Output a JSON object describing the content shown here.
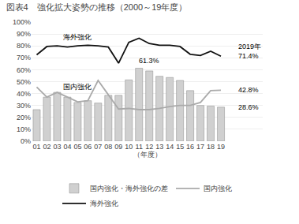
{
  "chart_data": {
    "type": "bar",
    "title": "図表4　強化拡大姿勢の推移（2000～19年度）",
    "x_label": "（年度）",
    "categories": [
      "01",
      "02",
      "03",
      "04",
      "05",
      "06",
      "07",
      "08",
      "09",
      "10",
      "11",
      "12",
      "13",
      "14",
      "15",
      "16",
      "17",
      "18",
      "19"
    ],
    "series": [
      {
        "name": "国内強化・海外強化の差",
        "type": "bar",
        "color": "#d0d0d0",
        "values": [
          26.5,
          37.0,
          41.0,
          37.0,
          32.5,
          34.0,
          32.0,
          38.5,
          38.5,
          51.5,
          61.3,
          59.0,
          54.5,
          53.5,
          51.0,
          42.5,
          30.0,
          29.5,
          28.6
        ]
      },
      {
        "name": "国内強化",
        "type": "line",
        "color": "#aaaaaa",
        "values": [
          45.5,
          37.0,
          41.0,
          37.0,
          33.0,
          34.0,
          51.0,
          39.0,
          27.0,
          27.5,
          26.5,
          26.5,
          27.5,
          29.0,
          30.0,
          30.0,
          32.5,
          42.5,
          42.8
        ]
      },
      {
        "name": "海外強化",
        "type": "line",
        "color": "#111111",
        "values": [
          72.5,
          79.5,
          80.0,
          79.0,
          80.0,
          80.5,
          80.0,
          79.0,
          65.5,
          83.0,
          86.5,
          82.0,
          80.5,
          80.5,
          79.5,
          73.0,
          72.0,
          75.5,
          71.4
        ]
      }
    ],
    "ylim": [
      0,
      100
    ],
    "yticks": [
      {
        "value": 0,
        "label": "0%"
      },
      {
        "value": 10,
        "label": "10%"
      },
      {
        "value": 20,
        "label": "20%"
      },
      {
        "value": 30,
        "label": "30%"
      },
      {
        "value": 40,
        "label": "40%"
      },
      {
        "value": 50,
        "label": "50%"
      },
      {
        "value": 60,
        "label": "60%"
      },
      {
        "value": 70,
        "label": "70%"
      },
      {
        "value": 80,
        "label": "80%"
      },
      {
        "value": 90,
        "label": "90%"
      },
      {
        "value": 100,
        "label": "100%"
      }
    ],
    "grid": true,
    "legend": "bottom",
    "annotations": [
      {
        "text": "61.3%",
        "series": "国内強化・海外強化の差",
        "category": "11",
        "value": 61.3
      },
      {
        "text": "2019年",
        "series": "海外強化",
        "category": "19"
      },
      {
        "text": "71.4%",
        "series": "海外強化",
        "category": "19",
        "value": 71.4
      },
      {
        "text": "42.8%",
        "series": "国内強化",
        "category": "19",
        "value": 42.8
      },
      {
        "text": "28.6%",
        "series": "国内強化・海外強化の差",
        "category": "19",
        "value": 28.6
      },
      {
        "text": "海外強化",
        "series": "海外強化",
        "category": "04"
      },
      {
        "text": "国内強化",
        "series": "国内強化",
        "category": "04"
      }
    ]
  }
}
